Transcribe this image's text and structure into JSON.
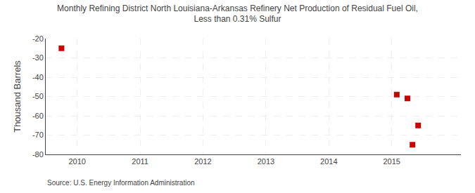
{
  "chart_data": {
    "type": "scatter",
    "title": "Monthly Refining District North Louisiana-Arkansas Refinery Net Production of Residual Fuel Oil,\nLess than 0.31% Sulfur",
    "ylabel": "Thousand Barrels",
    "source": "Source: U.S. Energy Information Administration",
    "x": [
      2009.75,
      2015.08,
      2015.25,
      2015.42,
      2015.33
    ],
    "values": [
      -25,
      -49,
      -51,
      -65,
      -75
    ],
    "color": "#cc0000",
    "marker": "square",
    "grid": true,
    "xlim": [
      2009.5,
      2016.1
    ],
    "ylim": [
      -80,
      -20
    ],
    "xticks": [
      2010,
      2011,
      2012,
      2013,
      2014,
      2015
    ],
    "yticks": [
      -20,
      -30,
      -40,
      -50,
      -60,
      -70,
      -80
    ]
  }
}
